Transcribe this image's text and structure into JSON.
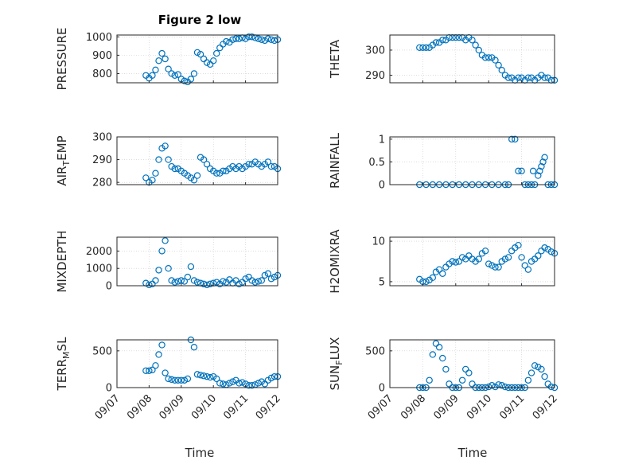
{
  "figure": {
    "title": "Figure 2 low",
    "xlabel": "Time"
  },
  "colors": {
    "marker": "#0072BD",
    "axis": "#262626",
    "grid": "#c8c8c8"
  },
  "chart_data": [
    {
      "type": "scatter",
      "ylabel": "PRESSURE",
      "ylim": [
        750,
        1010
      ],
      "yticks": [
        800,
        900,
        1000
      ],
      "xlim": [
        0,
        5
      ],
      "grid": true,
      "x": [
        0.9,
        1.0,
        1.1,
        1.2,
        1.3,
        1.4,
        1.5,
        1.6,
        1.7,
        1.8,
        1.9,
        2.0,
        2.1,
        2.2,
        2.3,
        2.4,
        2.5,
        2.6,
        2.7,
        2.8,
        2.9,
        3.0,
        3.1,
        3.2,
        3.3,
        3.4,
        3.5,
        3.6,
        3.7,
        3.8,
        3.9,
        4.0,
        4.1,
        4.2,
        4.3,
        4.4,
        4.5,
        4.6,
        4.7,
        4.8,
        4.9,
        5.0
      ],
      "y": [
        790,
        775,
        790,
        820,
        870,
        910,
        880,
        825,
        800,
        790,
        795,
        770,
        760,
        755,
        770,
        800,
        915,
        905,
        880,
        860,
        850,
        870,
        910,
        940,
        960,
        975,
        970,
        985,
        990,
        990,
        995,
        990,
        1000,
        1000,
        995,
        990,
        985,
        980,
        990,
        985,
        980,
        985
      ]
    },
    {
      "type": "scatter",
      "ylabel": "THETA",
      "ylim": [
        287,
        306
      ],
      "yticks": [
        290,
        300
      ],
      "xlim": [
        0,
        5
      ],
      "grid": true,
      "x": [
        0.9,
        1.0,
        1.1,
        1.2,
        1.3,
        1.4,
        1.5,
        1.6,
        1.7,
        1.8,
        1.9,
        2.0,
        2.1,
        2.2,
        2.3,
        2.4,
        2.5,
        2.6,
        2.7,
        2.8,
        2.9,
        3.0,
        3.1,
        3.2,
        3.3,
        3.4,
        3.5,
        3.6,
        3.7,
        3.8,
        3.9,
        4.0,
        4.1,
        4.2,
        4.3,
        4.4,
        4.5,
        4.6,
        4.7,
        4.8,
        4.9,
        5.0
      ],
      "y": [
        301,
        301,
        301,
        301,
        302,
        303,
        303,
        304,
        304,
        305,
        305,
        305,
        305,
        305,
        304,
        305,
        304,
        302,
        300,
        298,
        297,
        297,
        297,
        296,
        294,
        292,
        290,
        289,
        289,
        288,
        289,
        289,
        288,
        289,
        289,
        288,
        289,
        290,
        289,
        289,
        288,
        288
      ]
    },
    {
      "type": "scatter",
      "ylabel": "AIR_TEMP",
      "ylim": [
        279,
        300
      ],
      "yticks": [
        280,
        290,
        300
      ],
      "xlim": [
        0,
        5
      ],
      "grid": true,
      "x": [
        0.9,
        1.0,
        1.1,
        1.2,
        1.3,
        1.4,
        1.5,
        1.6,
        1.7,
        1.8,
        1.9,
        2.0,
        2.1,
        2.2,
        2.3,
        2.4,
        2.5,
        2.6,
        2.7,
        2.8,
        2.9,
        3.0,
        3.1,
        3.2,
        3.3,
        3.4,
        3.5,
        3.6,
        3.7,
        3.8,
        3.9,
        4.0,
        4.1,
        4.2,
        4.3,
        4.4,
        4.5,
        4.6,
        4.7,
        4.8,
        4.9,
        5.0
      ],
      "y": [
        282,
        280,
        281,
        284,
        290,
        295,
        296,
        290,
        287,
        286,
        286,
        285,
        284,
        283,
        282,
        281,
        283,
        291,
        290,
        288,
        286,
        285,
        284,
        284,
        285,
        285,
        286,
        287,
        286,
        287,
        286,
        287,
        288,
        288,
        289,
        288,
        287,
        288,
        289,
        287,
        287,
        286
      ]
    },
    {
      "type": "scatter",
      "ylabel": "RAINFALL",
      "ylim": [
        0,
        1.05
      ],
      "yticks": [
        0,
        0.5,
        1
      ],
      "ytickLabels": [
        "0",
        "0.5",
        "1"
      ],
      "xlim": [
        0,
        5
      ],
      "grid": true,
      "x": [
        0.9,
        1.1,
        1.3,
        1.5,
        1.7,
        1.9,
        2.1,
        2.3,
        2.5,
        2.7,
        2.9,
        3.1,
        3.3,
        3.5,
        3.6,
        3.7,
        3.8,
        3.9,
        4.0,
        4.1,
        4.2,
        4.3,
        4.35,
        4.4,
        4.5,
        4.55,
        4.6,
        4.65,
        4.7,
        4.8,
        4.9,
        5.0
      ],
      "y": [
        0,
        0,
        0,
        0,
        0,
        0,
        0,
        0,
        0,
        0,
        0,
        0,
        0,
        0,
        0,
        1,
        1,
        0.3,
        0.3,
        0,
        0,
        0,
        0.3,
        0,
        0.2,
        0.3,
        0.4,
        0.5,
        0.6,
        0,
        0,
        0
      ]
    },
    {
      "type": "scatter",
      "ylabel": "MIXDEPTH",
      "ylim": [
        0,
        2800
      ],
      "yticks": [
        0,
        1000,
        2000
      ],
      "xlim": [
        0,
        5
      ],
      "grid": true,
      "x": [
        0.9,
        1.0,
        1.1,
        1.2,
        1.3,
        1.4,
        1.5,
        1.6,
        1.7,
        1.8,
        1.9,
        2.0,
        2.1,
        2.2,
        2.3,
        2.4,
        2.5,
        2.6,
        2.7,
        2.8,
        2.9,
        3.0,
        3.1,
        3.2,
        3.3,
        3.4,
        3.5,
        3.6,
        3.7,
        3.8,
        3.9,
        4.0,
        4.1,
        4.2,
        4.3,
        4.4,
        4.5,
        4.6,
        4.7,
        4.8,
        4.9,
        5.0
      ],
      "y": [
        150,
        50,
        100,
        300,
        900,
        2000,
        2600,
        1000,
        300,
        200,
        250,
        300,
        250,
        500,
        1100,
        300,
        200,
        150,
        100,
        50,
        100,
        150,
        200,
        100,
        250,
        200,
        350,
        150,
        300,
        100,
        200,
        400,
        500,
        300,
        200,
        250,
        300,
        600,
        700,
        400,
        500,
        600
      ]
    },
    {
      "type": "scatter",
      "ylabel": "H2OMIXRA",
      "ylim": [
        4.5,
        10.5
      ],
      "yticks": [
        5,
        10
      ],
      "xlim": [
        0,
        5
      ],
      "grid": true,
      "x": [
        0.9,
        1.0,
        1.1,
        1.2,
        1.3,
        1.4,
        1.5,
        1.6,
        1.7,
        1.8,
        1.9,
        2.0,
        2.1,
        2.2,
        2.3,
        2.4,
        2.5,
        2.6,
        2.7,
        2.8,
        2.9,
        3.0,
        3.1,
        3.2,
        3.3,
        3.4,
        3.5,
        3.6,
        3.7,
        3.8,
        3.9,
        4.0,
        4.1,
        4.2,
        4.3,
        4.4,
        4.5,
        4.6,
        4.7,
        4.8,
        4.9,
        5.0
      ],
      "y": [
        5.3,
        5.0,
        5.0,
        5.2,
        5.5,
        6.2,
        6.5,
        6.0,
        6.8,
        7.2,
        7.5,
        7.4,
        7.5,
        8.0,
        7.8,
        8.2,
        7.8,
        7.5,
        7.8,
        8.5,
        8.8,
        7.2,
        7.0,
        6.8,
        6.8,
        7.5,
        7.8,
        8.0,
        8.8,
        9.2,
        9.5,
        8.0,
        7.0,
        6.5,
        7.5,
        7.8,
        8.2,
        8.8,
        9.2,
        9.0,
        8.7,
        8.5
      ]
    },
    {
      "type": "scatter",
      "ylabel": "TERR_MSL",
      "ylim": [
        0,
        650
      ],
      "yticks": [
        0,
        500
      ],
      "xlim": [
        0,
        5
      ],
      "grid": true,
      "x": [
        0.9,
        1.0,
        1.1,
        1.2,
        1.3,
        1.4,
        1.5,
        1.6,
        1.7,
        1.8,
        1.9,
        2.0,
        2.1,
        2.2,
        2.3,
        2.4,
        2.5,
        2.6,
        2.7,
        2.8,
        2.9,
        3.0,
        3.1,
        3.2,
        3.3,
        3.4,
        3.5,
        3.6,
        3.7,
        3.8,
        3.9,
        4.0,
        4.1,
        4.2,
        4.3,
        4.4,
        4.5,
        4.6,
        4.7,
        4.8,
        4.9,
        5.0
      ],
      "y": [
        230,
        230,
        240,
        300,
        450,
        580,
        200,
        120,
        110,
        100,
        100,
        100,
        100,
        120,
        650,
        550,
        180,
        170,
        160,
        150,
        140,
        150,
        120,
        60,
        50,
        40,
        60,
        80,
        100,
        60,
        70,
        50,
        30,
        30,
        40,
        60,
        80,
        50,
        100,
        130,
        150,
        150
      ]
    },
    {
      "type": "scatter",
      "ylabel": "SUN_FLUX",
      "ylim": [
        0,
        650
      ],
      "yticks": [
        0,
        500
      ],
      "xlim": [
        0,
        5
      ],
      "grid": true,
      "x": [
        0.9,
        1.0,
        1.1,
        1.2,
        1.3,
        1.4,
        1.5,
        1.6,
        1.7,
        1.8,
        1.9,
        2.0,
        2.1,
        2.2,
        2.3,
        2.4,
        2.5,
        2.6,
        2.7,
        2.8,
        2.9,
        3.0,
        3.1,
        3.2,
        3.3,
        3.4,
        3.5,
        3.6,
        3.7,
        3.8,
        3.9,
        4.0,
        4.1,
        4.2,
        4.3,
        4.4,
        4.5,
        4.6,
        4.7,
        4.8,
        4.9,
        5.0
      ],
      "y": [
        0,
        0,
        0,
        100,
        450,
        600,
        550,
        400,
        250,
        50,
        0,
        0,
        0,
        100,
        250,
        200,
        50,
        0,
        0,
        0,
        0,
        10,
        30,
        10,
        40,
        30,
        10,
        0,
        0,
        0,
        0,
        0,
        0,
        100,
        200,
        300,
        280,
        250,
        150,
        50,
        10,
        0
      ]
    }
  ],
  "xticks": {
    "values": [
      0,
      1,
      2,
      3,
      4,
      5
    ],
    "labels": [
      "09/07",
      "09/08",
      "09/09",
      "09/10",
      "09/11",
      "09/12"
    ]
  }
}
